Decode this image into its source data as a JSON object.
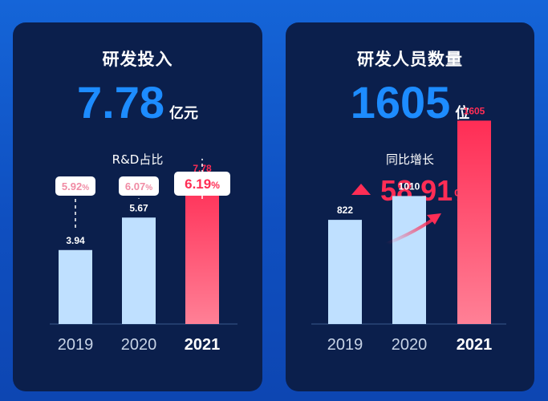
{
  "colors": {
    "page_bg": "#1565d8",
    "card_bg": "#0b1f4c",
    "accent_blue": "#1d8cff",
    "bar_light": "#bfe0ff",
    "bar_highlight": "#ff2d55",
    "axis": "#3a5a8c"
  },
  "left": {
    "title": "研发投入",
    "big_value": "7.78",
    "big_unit": "亿元",
    "subtitle": "R&D占比"
  },
  "right": {
    "title": "研发人员数量",
    "big_value": "1605",
    "big_unit": "位",
    "subtitle": "同比增长",
    "growth_value": "58.91",
    "growth_unit": "%"
  },
  "chart_data": [
    {
      "type": "bar",
      "title": "",
      "categories": [
        "2019",
        "2020",
        "2021"
      ],
      "values": [
        3.94,
        5.67,
        7.78
      ],
      "value_labels": [
        "3.94",
        "5.67",
        "7.78"
      ],
      "ratio_labels": [
        "5.92%",
        "6.07%",
        "6.19%"
      ],
      "highlight_index": 2,
      "ylim": [
        0,
        13.5
      ],
      "grid": false
    },
    {
      "type": "bar",
      "title": "",
      "categories": [
        "2019",
        "2020",
        "2021"
      ],
      "values": [
        822,
        1010,
        1605
      ],
      "value_labels": [
        "822",
        "1010",
        "1605"
      ],
      "highlight_index": 2,
      "ylim": [
        0,
        2000
      ],
      "grid": false
    }
  ]
}
